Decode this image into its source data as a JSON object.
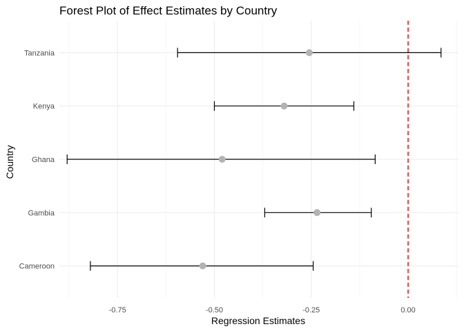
{
  "chart_data": {
    "type": "scatter",
    "subtype": "forest-plot",
    "title": "Forest Plot of Effect Estimates by Country",
    "xlabel": "Regression Estimates",
    "ylabel": "Country",
    "xlim": [
      -0.9,
      0.13
    ],
    "x_ticks": [
      -0.75,
      -0.5,
      -0.25,
      0.0
    ],
    "x_tick_labels": [
      "-0.75",
      "-0.50",
      "-0.25",
      "0.00"
    ],
    "categories": [
      "Cameroon",
      "Gambia",
      "Ghana",
      "Kenya",
      "Tanzania"
    ],
    "estimates": [
      -0.53,
      -0.235,
      -0.48,
      -0.32,
      -0.255
    ],
    "lower": [
      -0.82,
      -0.37,
      -0.88,
      -0.5,
      -0.595
    ],
    "upper": [
      -0.245,
      -0.095,
      -0.085,
      -0.14,
      0.085
    ],
    "reference_line": {
      "x": 0.0,
      "style": "dashed",
      "color": "#ff0000"
    },
    "point_color": "#b3b3b3",
    "grid": true,
    "legend": "none"
  }
}
